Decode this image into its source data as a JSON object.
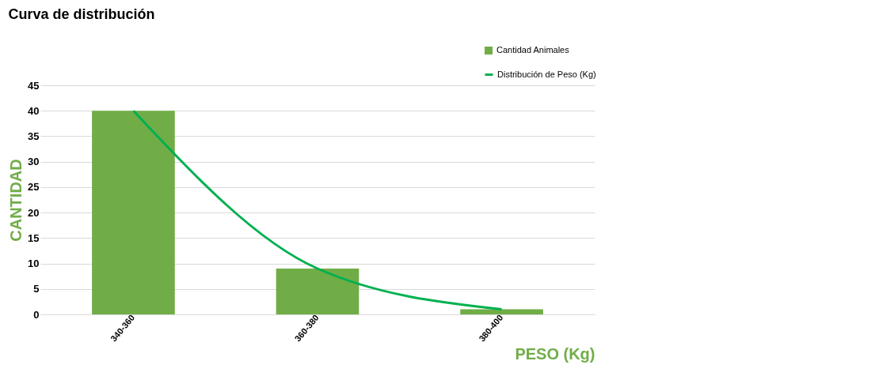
{
  "chart_data": {
    "type": "bar",
    "title": "Curva de distribución",
    "xlabel": "PESO (Kg)",
    "ylabel": "CANTIDAD",
    "categories": [
      "340-360",
      "360-380",
      "380-400"
    ],
    "series": [
      {
        "name": "Cantidad Animales",
        "color": "#70ad47",
        "values": [
          40,
          9,
          1
        ]
      },
      {
        "name": "Distribución de Peso (Kg)",
        "type": "line",
        "color": "#00b050",
        "values": [
          40,
          9,
          1
        ]
      }
    ],
    "ylim": [
      0,
      45
    ],
    "yticks": [
      0,
      5,
      10,
      15,
      20,
      25,
      30,
      35,
      40,
      45
    ],
    "grid": "y",
    "legend": "top right",
    "marker": "none"
  }
}
